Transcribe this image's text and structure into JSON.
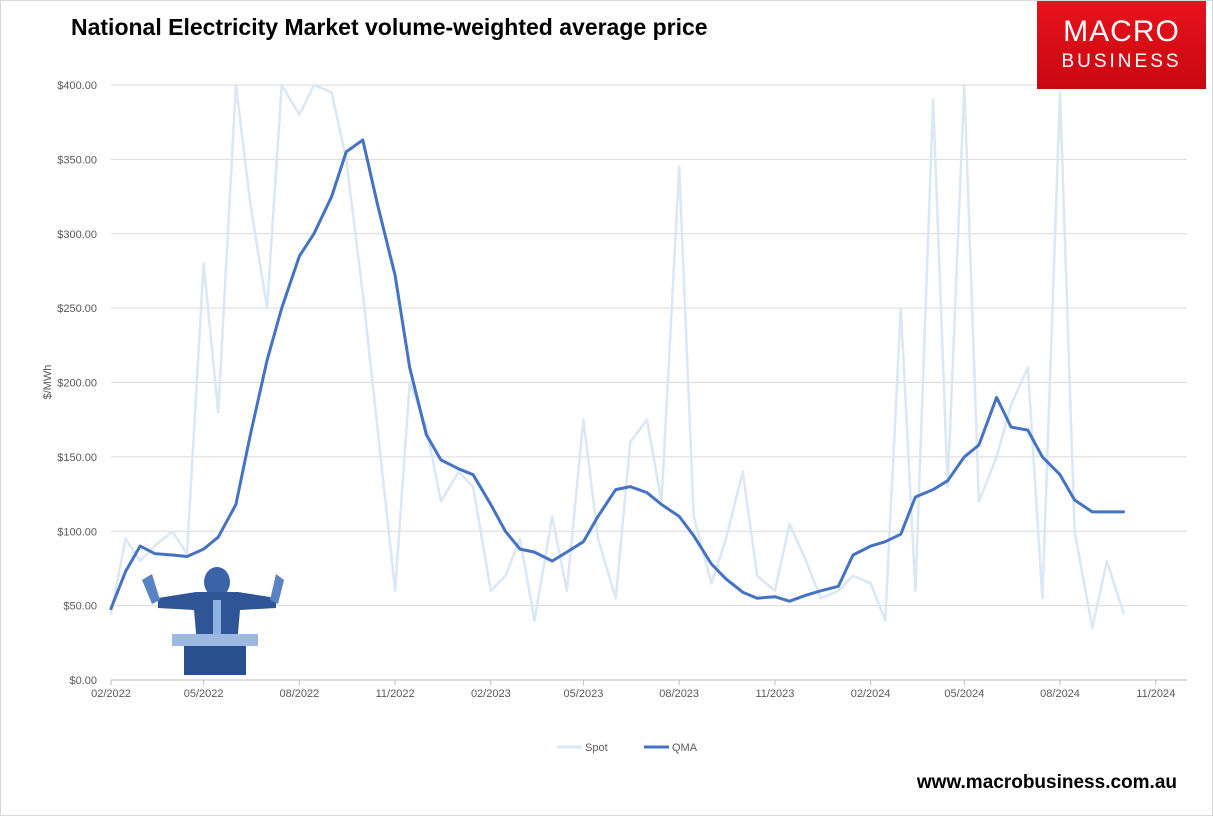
{
  "header": {
    "title": "National Electricity Market volume-weighted average price"
  },
  "logo": {
    "line1": "MACRO",
    "line2": "BUSINESS",
    "color": "#e8121c"
  },
  "footer": {
    "url": "www.macrobusiness.com.au"
  },
  "photo": {
    "icon": "politician-at-podium-photo",
    "tint": "#2f5597"
  },
  "chart_data": {
    "type": "line",
    "title": "National Electricity Market volume-weighted average price",
    "xlabel": "",
    "ylabel": "$/MWh",
    "ylim": [
      0,
      400
    ],
    "xlim": [
      "2022-02",
      "2024-12"
    ],
    "grid": true,
    "legend_position": "bottom",
    "y_ticks": [
      "$0.00",
      "$50.00",
      "$100.00",
      "$150.00",
      "$200.00",
      "$250.00",
      "$300.00",
      "$350.00",
      "$400.00"
    ],
    "x_ticks": [
      "02/2022",
      "05/2022",
      "08/2022",
      "11/2022",
      "02/2023",
      "05/2023",
      "08/2023",
      "11/2023",
      "02/2024",
      "05/2024",
      "08/2024",
      "11/2024"
    ],
    "series": [
      {
        "name": "Spot",
        "color": "#dae7f4",
        "x": [
          "2022-02-01",
          "2022-02-15",
          "2022-03-01",
          "2022-03-15",
          "2022-04-01",
          "2022-04-15",
          "2022-05-01",
          "2022-05-15",
          "2022-06-01",
          "2022-06-15",
          "2022-07-01",
          "2022-07-15",
          "2022-08-01",
          "2022-08-15",
          "2022-09-01",
          "2022-09-15",
          "2022-10-01",
          "2022-10-15",
          "2022-11-01",
          "2022-11-15",
          "2022-12-01",
          "2022-12-15",
          "2023-01-01",
          "2023-01-15",
          "2023-02-01",
          "2023-02-15",
          "2023-03-01",
          "2023-03-15",
          "2023-04-01",
          "2023-04-15",
          "2023-05-01",
          "2023-05-15",
          "2023-06-01",
          "2023-06-15",
          "2023-07-01",
          "2023-07-15",
          "2023-08-01",
          "2023-08-15",
          "2023-09-01",
          "2023-09-15",
          "2023-10-01",
          "2023-10-15",
          "2023-11-01",
          "2023-11-15",
          "2023-12-01",
          "2023-12-15",
          "2024-01-01",
          "2024-01-15",
          "2024-02-01",
          "2024-02-15",
          "2024-03-01",
          "2024-03-15",
          "2024-04-01",
          "2024-04-15",
          "2024-05-01",
          "2024-05-15",
          "2024-06-01",
          "2024-06-15",
          "2024-07-01",
          "2024-07-15",
          "2024-08-01",
          "2024-08-15",
          "2024-09-01",
          "2024-09-15",
          "2024-10-01"
        ],
        "values": [
          45,
          95,
          80,
          90,
          100,
          85,
          280,
          180,
          400,
          320,
          250,
          400,
          380,
          400,
          395,
          350,
          260,
          170,
          60,
          200,
          170,
          120,
          140,
          130,
          60,
          70,
          95,
          40,
          110,
          60,
          175,
          95,
          55,
          160,
          175,
          120,
          345,
          110,
          65,
          95,
          140,
          70,
          60,
          105,
          80,
          55,
          60,
          70,
          65,
          40,
          250,
          60,
          390,
          130,
          400,
          120,
          150,
          185,
          210,
          55,
          395,
          100,
          35,
          80,
          45
        ]
      },
      {
        "name": "QMA",
        "color": "#4472c4",
        "x": [
          "2022-02-01",
          "2022-02-15",
          "2022-03-01",
          "2022-03-15",
          "2022-04-01",
          "2022-04-15",
          "2022-05-01",
          "2022-05-15",
          "2022-06-01",
          "2022-06-15",
          "2022-07-01",
          "2022-07-15",
          "2022-08-01",
          "2022-08-15",
          "2022-09-01",
          "2022-09-15",
          "2022-10-01",
          "2022-10-15",
          "2022-11-01",
          "2022-11-15",
          "2022-12-01",
          "2022-12-15",
          "2023-01-01",
          "2023-01-15",
          "2023-02-01",
          "2023-02-15",
          "2023-03-01",
          "2023-03-15",
          "2023-04-01",
          "2023-04-15",
          "2023-05-01",
          "2023-05-15",
          "2023-06-01",
          "2023-06-15",
          "2023-07-01",
          "2023-07-15",
          "2023-08-01",
          "2023-08-15",
          "2023-09-01",
          "2023-09-15",
          "2023-10-01",
          "2023-10-15",
          "2023-11-01",
          "2023-11-15",
          "2023-12-01",
          "2023-12-15",
          "2024-01-01",
          "2024-01-15",
          "2024-02-01",
          "2024-02-15",
          "2024-03-01",
          "2024-03-15",
          "2024-04-01",
          "2024-04-15",
          "2024-05-01",
          "2024-05-15",
          "2024-06-01",
          "2024-06-15",
          "2024-07-01",
          "2024-07-15",
          "2024-08-01",
          "2024-08-15",
          "2024-09-01",
          "2024-09-15",
          "2024-10-01"
        ],
        "values": [
          48,
          73,
          90,
          85,
          84,
          83,
          88,
          96,
          118,
          165,
          215,
          250,
          285,
          300,
          325,
          355,
          363,
          320,
          272,
          210,
          165,
          148,
          142,
          138,
          118,
          100,
          88,
          86,
          80,
          86,
          93,
          110,
          128,
          130,
          126,
          118,
          110,
          97,
          78,
          68,
          59,
          55,
          56,
          53,
          57,
          60,
          63,
          84,
          90,
          93,
          98,
          123,
          128,
          134,
          150,
          158,
          190,
          170,
          168,
          150,
          138,
          121,
          113,
          113,
          113
        ]
      }
    ]
  }
}
